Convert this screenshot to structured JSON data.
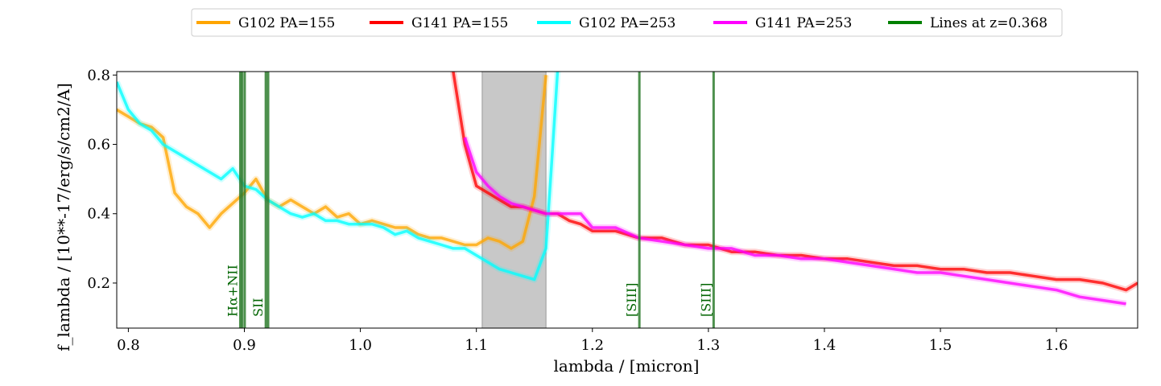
{
  "chart_data": {
    "type": "line",
    "xlabel": "lambda / [micron]",
    "ylabel": "f_lambda / [10**-17/erg/s/cm2/A]",
    "xlim": [
      0.79,
      1.67
    ],
    "ylim": [
      0.07,
      0.81
    ],
    "xticks": [
      0.8,
      0.9,
      1.0,
      1.1,
      1.2,
      1.3,
      1.4,
      1.5,
      1.6
    ],
    "xtick_labels": [
      "0.8",
      "0.9",
      "1.0",
      "1.1",
      "1.2",
      "1.3",
      "1.4",
      "1.5",
      "1.6"
    ],
    "yticks": [
      0.2,
      0.4,
      0.6,
      0.8
    ],
    "ytick_labels": [
      "0.2",
      "0.4",
      "0.6",
      "0.8"
    ],
    "grid": false,
    "legend_position": "top-center, outside plot",
    "shaded_region": {
      "x": [
        1.105,
        1.16
      ],
      "color": "#c8c8c8"
    },
    "series": [
      {
        "name": "G102 PA=155",
        "color": "#ffa500",
        "x": [
          0.79,
          0.8,
          0.81,
          0.82,
          0.83,
          0.84,
          0.85,
          0.86,
          0.87,
          0.88,
          0.89,
          0.9,
          0.91,
          0.92,
          0.93,
          0.94,
          0.95,
          0.96,
          0.97,
          0.98,
          0.99,
          1.0,
          1.01,
          1.02,
          1.03,
          1.04,
          1.05,
          1.06,
          1.07,
          1.08,
          1.09,
          1.1,
          1.11,
          1.12,
          1.13,
          1.14,
          1.15,
          1.16
        ],
        "y": [
          0.7,
          0.68,
          0.66,
          0.65,
          0.62,
          0.46,
          0.42,
          0.4,
          0.36,
          0.4,
          0.43,
          0.46,
          0.5,
          0.44,
          0.42,
          0.44,
          0.42,
          0.4,
          0.42,
          0.39,
          0.4,
          0.37,
          0.38,
          0.37,
          0.36,
          0.36,
          0.34,
          0.33,
          0.33,
          0.32,
          0.31,
          0.31,
          0.33,
          0.32,
          0.3,
          0.32,
          0.45,
          0.8
        ]
      },
      {
        "name": "G141 PA=155",
        "color": "#ff0000",
        "x": [
          1.08,
          1.09,
          1.1,
          1.11,
          1.12,
          1.13,
          1.14,
          1.15,
          1.16,
          1.17,
          1.18,
          1.19,
          1.2,
          1.22,
          1.24,
          1.26,
          1.28,
          1.3,
          1.32,
          1.34,
          1.36,
          1.38,
          1.4,
          1.42,
          1.44,
          1.46,
          1.48,
          1.5,
          1.52,
          1.54,
          1.56,
          1.58,
          1.6,
          1.62,
          1.64,
          1.66,
          1.67
        ],
        "y": [
          0.81,
          0.6,
          0.48,
          0.46,
          0.44,
          0.42,
          0.42,
          0.41,
          0.4,
          0.4,
          0.38,
          0.37,
          0.35,
          0.35,
          0.33,
          0.33,
          0.31,
          0.31,
          0.29,
          0.29,
          0.28,
          0.28,
          0.27,
          0.27,
          0.26,
          0.25,
          0.25,
          0.24,
          0.24,
          0.23,
          0.23,
          0.22,
          0.21,
          0.21,
          0.2,
          0.18,
          0.2
        ]
      },
      {
        "name": "G102 PA=253",
        "color": "#00ffff",
        "x": [
          0.79,
          0.8,
          0.81,
          0.82,
          0.83,
          0.84,
          0.85,
          0.86,
          0.87,
          0.88,
          0.89,
          0.9,
          0.91,
          0.92,
          0.93,
          0.94,
          0.95,
          0.96,
          0.97,
          0.98,
          0.99,
          1.0,
          1.01,
          1.02,
          1.03,
          1.04,
          1.05,
          1.06,
          1.07,
          1.08,
          1.09,
          1.1,
          1.11,
          1.12,
          1.13,
          1.14,
          1.15,
          1.16,
          1.165,
          1.17
        ],
        "y": [
          0.78,
          0.7,
          0.66,
          0.64,
          0.6,
          0.58,
          0.56,
          0.54,
          0.52,
          0.5,
          0.53,
          0.48,
          0.47,
          0.44,
          0.42,
          0.4,
          0.39,
          0.4,
          0.38,
          0.38,
          0.37,
          0.37,
          0.37,
          0.36,
          0.34,
          0.35,
          0.33,
          0.32,
          0.31,
          0.3,
          0.3,
          0.28,
          0.26,
          0.24,
          0.23,
          0.22,
          0.21,
          0.3,
          0.55,
          0.81
        ]
      },
      {
        "name": "G141 PA=253",
        "color": "#ff00ff",
        "x": [
          1.09,
          1.1,
          1.11,
          1.12,
          1.13,
          1.14,
          1.15,
          1.16,
          1.17,
          1.18,
          1.19,
          1.2,
          1.22,
          1.24,
          1.26,
          1.28,
          1.3,
          1.32,
          1.34,
          1.36,
          1.38,
          1.4,
          1.42,
          1.44,
          1.46,
          1.48,
          1.5,
          1.52,
          1.54,
          1.56,
          1.58,
          1.6,
          1.62,
          1.64,
          1.66
        ],
        "y": [
          0.62,
          0.52,
          0.48,
          0.45,
          0.43,
          0.42,
          0.41,
          0.4,
          0.4,
          0.4,
          0.4,
          0.36,
          0.36,
          0.33,
          0.32,
          0.31,
          0.3,
          0.3,
          0.28,
          0.28,
          0.27,
          0.27,
          0.26,
          0.25,
          0.24,
          0.23,
          0.23,
          0.22,
          0.21,
          0.2,
          0.19,
          0.18,
          0.16,
          0.15,
          0.14
        ]
      },
      {
        "name": "Lines at z=0.368",
        "color": "#008000",
        "x": [],
        "y": []
      }
    ],
    "emission_lines": [
      {
        "x": 0.8965,
        "label": "Hα+NII"
      },
      {
        "x": 0.898,
        "label": ""
      },
      {
        "x": 0.9003,
        "label": ""
      },
      {
        "x": 0.9185,
        "label": "SII"
      },
      {
        "x": 0.9205,
        "label": ""
      },
      {
        "x": 1.2405,
        "label": "[SIII]"
      },
      {
        "x": 1.3045,
        "label": "[SIII]"
      }
    ]
  }
}
